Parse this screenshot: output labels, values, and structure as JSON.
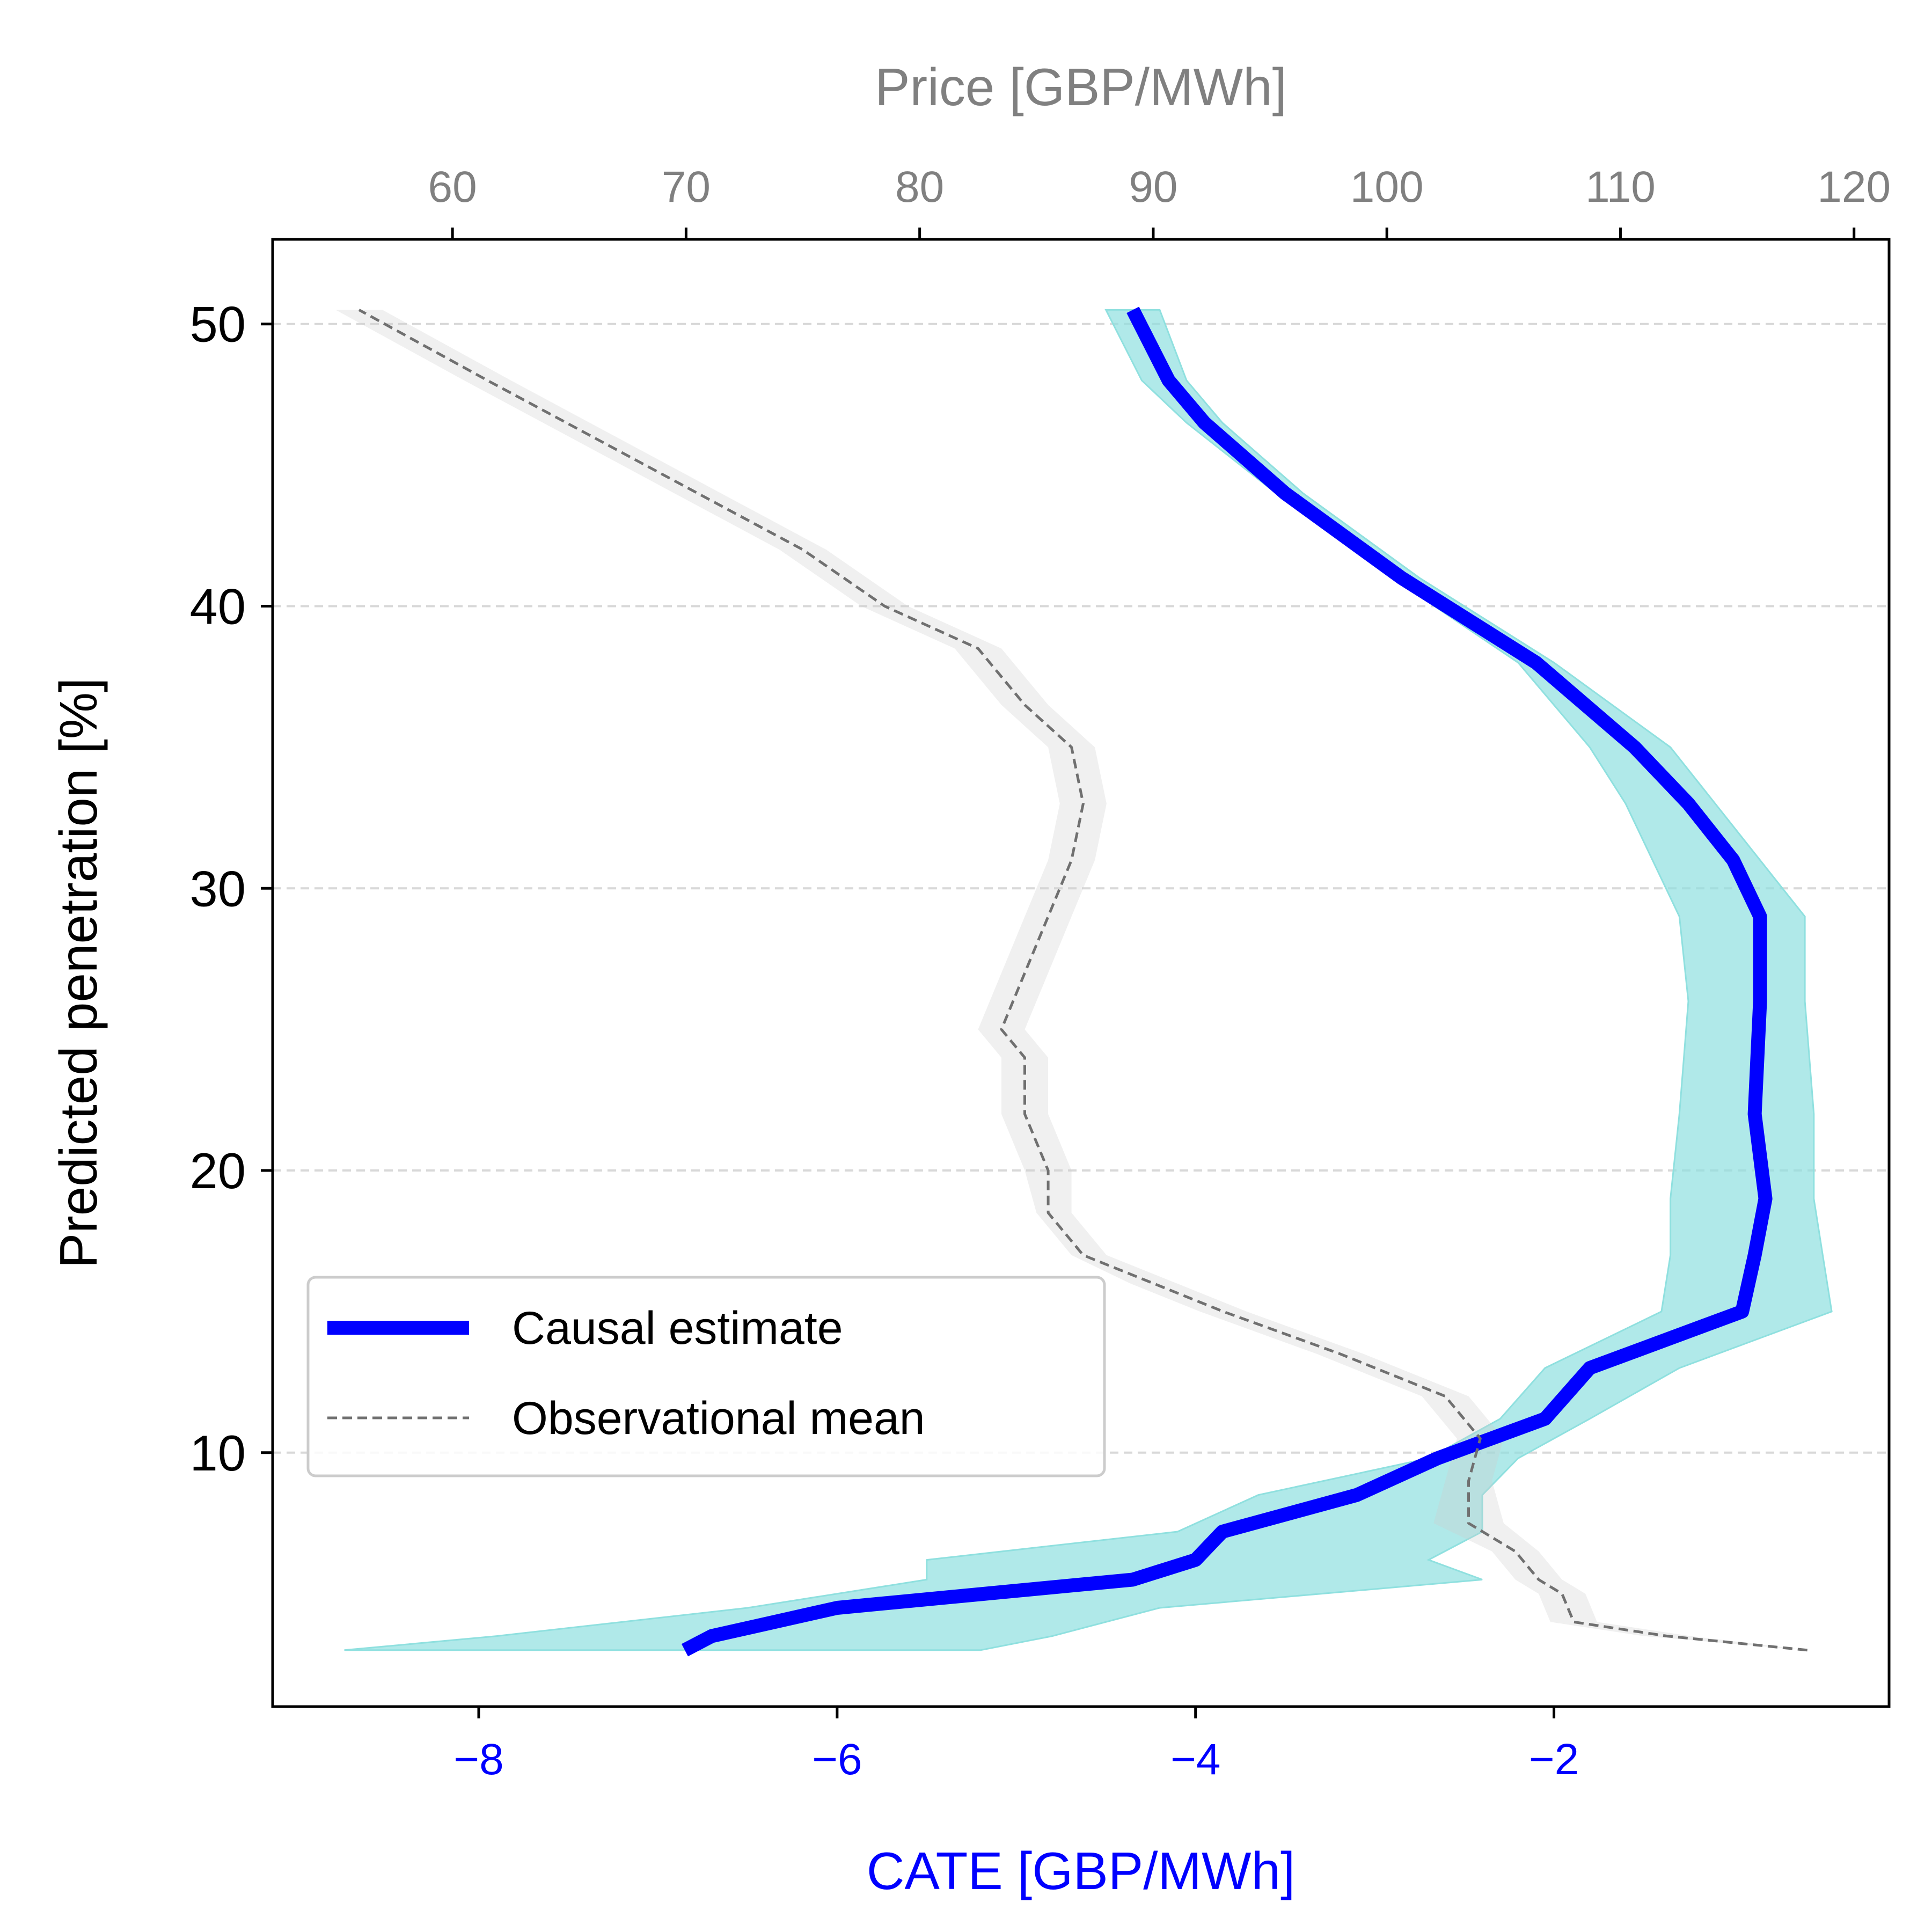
{
  "colors": {
    "causal_line": "#0000ff",
    "causal_band": "#8fe0df",
    "observational_line": "#707070",
    "observational_band": "#cccccc",
    "grid": "#d8d8d8",
    "bottom_axis_text": "#0000ff",
    "top_axis_text": "#808080"
  },
  "chart_data": {
    "type": "line",
    "orientation": "horizontal-value-axis",
    "xlabel": "CATE [GBP/MWh]",
    "x2label": "Price [GBP/MWh]",
    "ylabel": "Predicted penetration [%]",
    "xlim": [
      -9.15,
      -0.13
    ],
    "x2lim": [
      52.3,
      121.5
    ],
    "ylim": [
      1.0,
      53.0
    ],
    "xticks": [
      -8,
      -6,
      -4,
      -2
    ],
    "xtick_labels": [
      "−8",
      "−6",
      "−4",
      "−2"
    ],
    "x2ticks": [
      60,
      70,
      80,
      90,
      100,
      110,
      120
    ],
    "x2tick_labels": [
      "60",
      "70",
      "80",
      "90",
      "100",
      "110",
      "120"
    ],
    "yticks": [
      10,
      20,
      30,
      40,
      50
    ],
    "ytick_labels": [
      "10",
      "20",
      "30",
      "40",
      "50"
    ],
    "grid": {
      "y": true,
      "x": false,
      "style": "dashed"
    },
    "legend": {
      "position": "lower-left",
      "entries": [
        "Causal estimate",
        "Observational mean"
      ]
    },
    "series": [
      {
        "name": "Causal estimate",
        "axis": "bottom",
        "y": [
          3.0,
          3.5,
          4.5,
          5.5,
          6.2,
          7.2,
          8.5,
          9.8,
          11.2,
          13.0,
          15.0,
          17.0,
          19.0,
          22.0,
          26.0,
          29.0,
          31.0,
          33.0,
          35.0,
          38.0,
          41.0,
          44.0,
          46.5,
          48.0,
          50.5
        ],
        "x": [
          -6.85,
          -6.7,
          -6.0,
          -4.35,
          -4.0,
          -3.85,
          -3.1,
          -2.65,
          -2.05,
          -1.8,
          -0.95,
          -0.88,
          -0.82,
          -0.88,
          -0.85,
          -0.85,
          -1.0,
          -1.25,
          -1.55,
          -2.1,
          -2.85,
          -3.5,
          -3.95,
          -4.15,
          -4.35
        ],
        "lower": [
          -8.75,
          -7.9,
          -6.5,
          -5.5,
          -5.5,
          -4.1,
          -3.65,
          -2.7,
          -2.3,
          -2.05,
          -1.4,
          -1.35,
          -1.35,
          -1.3,
          -1.25,
          -1.3,
          -1.45,
          -1.6,
          -1.8,
          -2.2,
          -2.9,
          -3.55,
          -4.05,
          -4.3,
          -4.5
        ],
        "upper": [
          -5.2,
          -4.8,
          -4.2,
          -2.4,
          -2.7,
          -2.4,
          -2.4,
          -2.2,
          -1.8,
          -1.3,
          -0.45,
          -0.5,
          -0.55,
          -0.55,
          -0.6,
          -0.6,
          -0.85,
          -1.1,
          -1.35,
          -2.0,
          -2.75,
          -3.4,
          -3.85,
          -4.05,
          -4.2
        ]
      },
      {
        "name": "Observational mean",
        "axis": "top",
        "y": [
          3.0,
          3.5,
          4.0,
          5.0,
          5.5,
          6.5,
          7.5,
          9.0,
          10.5,
          12.0,
          13.5,
          15.0,
          16.0,
          17.0,
          18.5,
          20.0,
          22.0,
          24.0,
          25.0,
          27.0,
          29.0,
          31.0,
          33.0,
          35.0,
          36.5,
          38.5,
          40.0,
          42.0,
          44.0,
          46.0,
          48.0,
          50.5
        ],
        "x": [
          118.0,
          112.0,
          108.0,
          107.5,
          106.5,
          105.5,
          103.5,
          103.5,
          104.0,
          102.5,
          98.0,
          93.0,
          90.0,
          87.0,
          85.5,
          85.5,
          84.5,
          84.5,
          83.5,
          84.5,
          85.5,
          86.5,
          87.0,
          86.5,
          84.5,
          82.5,
          78.5,
          75.0,
          70.5,
          66.0,
          61.5,
          56.0
        ],
        "lower": [
          118.0,
          111.0,
          107.0,
          106.5,
          105.5,
          104.5,
          102.0,
          102.5,
          103.0,
          101.5,
          97.0,
          92.0,
          89.0,
          86.5,
          85.0,
          84.5,
          83.5,
          83.5,
          82.5,
          83.5,
          84.5,
          85.5,
          86.0,
          85.5,
          83.5,
          81.5,
          77.5,
          74.0,
          69.5,
          65.0,
          60.5,
          55.0
        ],
        "upper": [
          118.0,
          113.0,
          109.0,
          108.5,
          107.5,
          106.5,
          105.0,
          104.5,
          105.0,
          103.5,
          99.0,
          94.0,
          91.0,
          88.0,
          86.5,
          86.5,
          85.5,
          85.5,
          84.5,
          85.5,
          86.5,
          87.5,
          88.0,
          87.5,
          85.5,
          83.5,
          79.5,
          76.0,
          71.5,
          67.0,
          62.5,
          57.0
        ]
      }
    ]
  }
}
